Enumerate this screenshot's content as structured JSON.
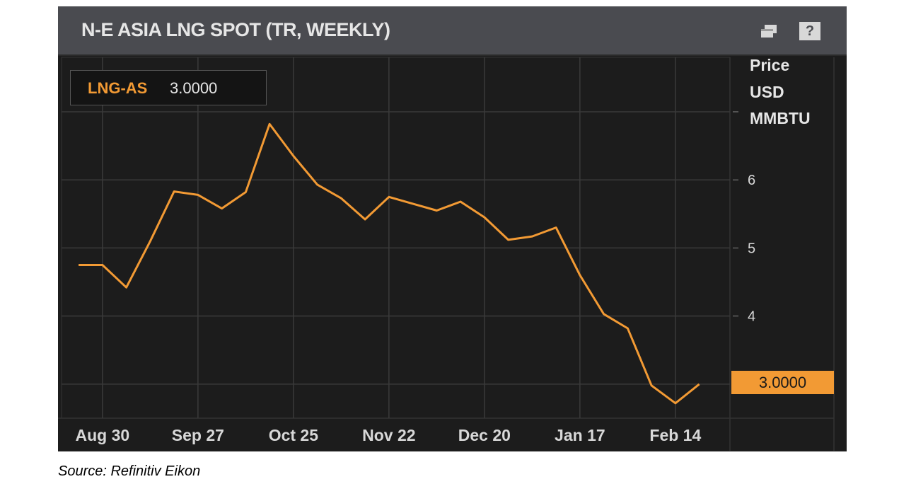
{
  "header": {
    "title": "N-E ASIA LNG SPOT (TR, WEEKLY)",
    "restore_icon": "restore-window-icon",
    "help_label": "?"
  },
  "legend": {
    "name": "LNG-AS",
    "value": "3.0000"
  },
  "unit": {
    "line1": "Price",
    "line2": "USD",
    "line3": "MMBTU"
  },
  "last_price_tag": "3.0000",
  "source": "Source: Refinitiv Eikon",
  "colors": {
    "series": "#f29a34",
    "background": "#1c1c1c",
    "titlebar": "#4a4b50"
  },
  "chart_data": {
    "type": "line",
    "title": "N-E ASIA LNG SPOT (TR, WEEKLY)",
    "x_ticks": [
      "Aug 30",
      "Sep 27",
      "Oct 25",
      "Nov 22",
      "Dec 20",
      "Jan 17",
      "Feb 14"
    ],
    "y_ticks": [
      4,
      5,
      6
    ],
    "ylim": [
      2.5,
      7.8
    ],
    "grid": true,
    "series": [
      {
        "name": "LNG-AS",
        "x": [
          "2020-08-23",
          "2020-08-30",
          "2020-09-06",
          "2020-09-13",
          "2020-09-20",
          "2020-09-27",
          "2020-10-04",
          "2020-10-11",
          "2020-10-18",
          "2020-10-25",
          "2020-11-01",
          "2020-11-08",
          "2020-11-15",
          "2020-11-22",
          "2020-11-29",
          "2020-12-06",
          "2020-12-13",
          "2020-12-20",
          "2020-12-27",
          "2021-01-03",
          "2021-01-10",
          "2021-01-17",
          "2021-01-24",
          "2021-01-31",
          "2021-02-07",
          "2021-02-14",
          "2021-02-21"
        ],
        "values": [
          4.75,
          4.75,
          4.42,
          5.1,
          5.83,
          5.78,
          5.58,
          5.82,
          6.82,
          6.35,
          5.93,
          5.73,
          5.42,
          5.75,
          5.65,
          5.55,
          5.68,
          5.45,
          5.12,
          5.17,
          5.3,
          4.6,
          4.03,
          3.82,
          2.98,
          2.72,
          3.0
        ]
      }
    ]
  }
}
